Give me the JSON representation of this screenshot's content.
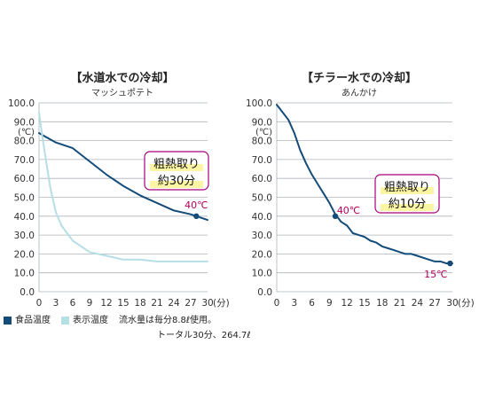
{
  "colors": {
    "food_line": "#134b79",
    "display_line": "#b6dfe5",
    "grid": "#aeb4ba",
    "marker": "#b5005b",
    "note_border": "#a7007d",
    "note_fill": "#fbf5a4"
  },
  "legend": {
    "food_label": "食品温度",
    "display_label": "表示温度",
    "note_line1": "流水量は毎分8.8ℓ使用。",
    "note_line2": "トータル30分、264.7ℓ"
  },
  "chart_data": [
    {
      "type": "line",
      "title": "【水道水での冷却】",
      "subtitle": "マッシュポテト",
      "ylabel": "(℃)",
      "ylim": [
        0,
        100
      ],
      "xlim": [
        0,
        30
      ],
      "grid": true,
      "y_ticks": [
        "0.0",
        "10.0",
        "20.0",
        "30.0",
        "40.0",
        "50.0",
        "60.0",
        "70.0",
        "80.0",
        "90.0",
        "100.0"
      ],
      "x_ticks": [
        "0",
        "3",
        "6",
        "9",
        "12",
        "15",
        "18",
        "21",
        "24",
        "27",
        "30"
      ],
      "x_unit": "(分)",
      "series": [
        {
          "name": "食品温度",
          "color": "#134b79",
          "width": 2,
          "x": [
            0,
            3,
            6,
            9,
            12,
            15,
            18,
            21,
            24,
            27,
            29,
            30
          ],
          "y": [
            84,
            79,
            76,
            69,
            62,
            56,
            51,
            47,
            43,
            41,
            39,
            38
          ]
        },
        {
          "name": "表示温度",
          "color": "#b6dfe5",
          "width": 2,
          "x": [
            0,
            0.7,
            2,
            3,
            4,
            6,
            9,
            12,
            15,
            18,
            21,
            24,
            27,
            30
          ],
          "y": [
            95,
            80,
            55,
            42,
            35,
            27,
            21,
            19,
            17,
            17,
            16,
            16,
            16,
            16
          ]
        }
      ],
      "marker": {
        "x": 28,
        "y": 40,
        "label": "40℃"
      },
      "note_line1": "粗熱取り",
      "note_line2": "約30分"
    },
    {
      "type": "line",
      "title": "【チラー水での冷却】",
      "subtitle": "あんかけ",
      "ylabel": "(℃)",
      "ylim": [
        0,
        100
      ],
      "xlim": [
        0,
        30
      ],
      "grid": true,
      "y_ticks": [
        "0.0",
        "10.0",
        "20.0",
        "30.0",
        "40.0",
        "50.0",
        "60.0",
        "70.0",
        "80.0",
        "90.0",
        "100.0"
      ],
      "x_ticks": [
        "0",
        "3",
        "6",
        "9",
        "12",
        "15",
        "18",
        "21",
        "24",
        "27",
        "30"
      ],
      "x_unit": "(分)",
      "series": [
        {
          "name": "食品温度",
          "color": "#134b79",
          "width": 2,
          "x": [
            0,
            2,
            3,
            4,
            5,
            6,
            7,
            8,
            9,
            10,
            11,
            12,
            13,
            14,
            15,
            16,
            17,
            18,
            19,
            20,
            21,
            22,
            23,
            24,
            25,
            26,
            27,
            28,
            29,
            30
          ],
          "y": [
            99,
            91,
            84,
            75,
            68,
            62,
            57,
            52,
            47,
            41,
            37,
            35,
            31,
            30,
            29,
            27,
            26,
            24,
            23,
            22,
            21,
            20,
            20,
            19,
            18,
            17,
            16,
            16,
            15,
            15
          ]
        }
      ],
      "marker": {
        "x": 10,
        "y": 40,
        "label": "40℃"
      },
      "marker2": {
        "x": 29.6,
        "y": 15,
        "label": "15℃"
      },
      "note_line1": "粗熱取り",
      "note_line2": "約10分"
    }
  ]
}
